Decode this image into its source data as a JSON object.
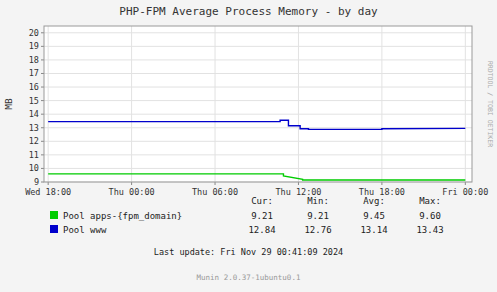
{
  "chart_data": {
    "type": "line",
    "title": "PHP-FPM Average Process Memory - by day",
    "y_label": "MB",
    "xlim": [
      -0.05,
      5.08
    ],
    "xticks": [
      {
        "value": 0,
        "label": "Wed 18:00"
      },
      {
        "value": 1,
        "label": "Thu 00:00"
      },
      {
        "value": 2,
        "label": "Thu 06:00"
      },
      {
        "value": 3,
        "label": "Thu 12:00"
      },
      {
        "value": 4,
        "label": "Thu 18:00"
      },
      {
        "value": 5,
        "label": "Fri 00:00"
      }
    ],
    "ylim": [
      9,
      20.5
    ],
    "yticks": [
      9,
      10,
      11,
      12,
      13,
      14,
      15,
      16,
      17,
      18,
      19,
      20
    ],
    "grid": true,
    "stats_headers": [
      "Cur:",
      "Min:",
      "Avg:",
      "Max:"
    ],
    "series": [
      {
        "name": "Pool apps-{fpm_domain}",
        "color": "#00cc00",
        "x": [
          0,
          2.82,
          2.82,
          3.05,
          3.05,
          5.0
        ],
        "values": [
          9.6,
          9.6,
          9.45,
          9.2,
          9.15,
          9.15
        ],
        "stats": [
          9.21,
          9.21,
          9.45,
          9.6
        ],
        "stats_labels": [
          "9.21",
          "9.21",
          "9.45",
          "9.60"
        ]
      },
      {
        "name": "Pool www",
        "color": "#0000cc",
        "x": [
          0,
          2.78,
          2.78,
          2.88,
          2.88,
          3.02,
          3.02,
          3.12,
          3.12,
          4.0,
          4.0,
          5.0
        ],
        "values": [
          13.45,
          13.45,
          13.55,
          13.55,
          13.15,
          13.15,
          12.92,
          12.92,
          12.88,
          12.88,
          12.92,
          12.95
        ],
        "stats": [
          12.84,
          12.76,
          13.14,
          13.43
        ],
        "stats_labels": [
          "12.84",
          "12.76",
          "13.14",
          "13.43"
        ]
      }
    ],
    "annotations": [
      "Last update: Fri Nov 29 00:41:09 2024",
      "Munin 2.0.37-1ubuntu0.1",
      "RRDTOOL / TOBI OETIKER"
    ]
  }
}
